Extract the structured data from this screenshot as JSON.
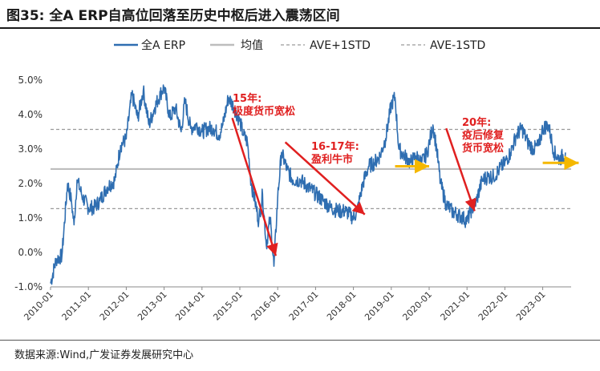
{
  "header": {
    "figure_label": "图35:",
    "title": "全A ERP自高位回落至历史中枢后进入震荡区间"
  },
  "source": "数据来源:Wind,广发证券发展研究中心",
  "colors": {
    "erp": "#2f6eb1",
    "mean": "#bdbdbd",
    "std": "#9a9a9a",
    "annotation": "#e02020",
    "arrow_flat": "#f5b800"
  },
  "chart_data": {
    "type": "line",
    "title": "",
    "xlabel": "",
    "ylabel": "",
    "ylim": [
      -1.0,
      5.0
    ],
    "y_ticks": [
      "5.0%",
      "4.0%",
      "3.0%",
      "2.0%",
      "1.0%",
      "0.0%",
      "-1.0%"
    ],
    "x_ticks": [
      "2010-01",
      "2011-01",
      "2012-01",
      "2013-01",
      "2014-01",
      "2015-01",
      "2016-01",
      "2017-01",
      "2018-01",
      "2019-01",
      "2020-01",
      "2021-01",
      "2022-01",
      "2023-01"
    ],
    "grid": false,
    "legend_position": "top",
    "legend": [
      "全A ERP",
      "均值",
      "AVE+1STD",
      "AVE-1STD"
    ],
    "reference_lines": {
      "mean": 2.42,
      "ave_plus_1std": 3.57,
      "ave_minus_1std": 1.27
    },
    "series": [
      {
        "name": "全A ERP",
        "x": [
          2010.0,
          2010.15,
          2010.3,
          2010.45,
          2010.55,
          2010.62,
          2010.7,
          2010.85,
          2011.0,
          2011.15,
          2011.3,
          2011.5,
          2011.7,
          2011.85,
          2012.0,
          2012.15,
          2012.3,
          2012.45,
          2012.6,
          2012.75,
          2012.9,
          2013.0,
          2013.15,
          2013.3,
          2013.45,
          2013.55,
          2013.7,
          2013.85,
          2014.0,
          2014.15,
          2014.3,
          2014.45,
          2014.55,
          2014.7,
          2014.85,
          2015.0,
          2015.1,
          2015.2,
          2015.3,
          2015.4,
          2015.5,
          2015.6,
          2015.7,
          2015.8,
          2015.9,
          2016.0,
          2016.1,
          2016.25,
          2016.4,
          2016.6,
          2016.8,
          2017.0,
          2017.2,
          2017.4,
          2017.6,
          2017.8,
          2018.0,
          2018.1,
          2018.25,
          2018.4,
          2018.55,
          2018.7,
          2018.85,
          2019.0,
          2019.1,
          2019.2,
          2019.35,
          2019.5,
          2019.65,
          2019.8,
          2019.95,
          2020.1,
          2020.2,
          2020.3,
          2020.45,
          2020.6,
          2020.75,
          2020.9,
          2021.0,
          2021.1,
          2021.25,
          2021.4,
          2021.55,
          2021.7,
          2021.85,
          2022.0,
          2022.15,
          2022.3,
          2022.45,
          2022.6,
          2022.75,
          2022.9,
          2023.0,
          2023.15,
          2023.3,
          2023.45,
          2023.6
        ],
        "values": [
          -0.9,
          -0.2,
          -0.1,
          2.0,
          1.5,
          0.8,
          2.1,
          1.6,
          1.3,
          1.3,
          1.5,
          1.9,
          2.1,
          3.1,
          3.3,
          4.6,
          3.9,
          4.7,
          3.7,
          4.2,
          4.6,
          4.8,
          3.9,
          4.2,
          3.5,
          4.4,
          3.6,
          3.7,
          3.5,
          3.6,
          3.6,
          3.4,
          3.7,
          4.5,
          4.2,
          3.8,
          3.4,
          3.2,
          2.0,
          1.5,
          0.9,
          1.7,
          0.2,
          1.0,
          -0.4,
          1.6,
          2.9,
          2.4,
          2.1,
          2.1,
          1.9,
          1.7,
          1.5,
          1.3,
          1.2,
          1.2,
          1.0,
          1.2,
          2.0,
          2.5,
          2.6,
          2.8,
          3.3,
          4.3,
          4.5,
          3.0,
          2.8,
          2.6,
          2.8,
          2.6,
          2.9,
          3.7,
          3.0,
          2.0,
          1.4,
          1.2,
          1.1,
          1.0,
          0.9,
          1.2,
          1.5,
          2.1,
          2.2,
          2.2,
          2.4,
          2.6,
          2.9,
          3.4,
          3.6,
          3.2,
          3.0,
          3.1,
          3.6,
          3.7,
          2.9,
          2.7,
          2.9
        ]
      }
    ],
    "annotations": [
      {
        "lines": [
          "15年:",
          "极度货币宽松"
        ]
      },
      {
        "lines": [
          "16-17年:",
          "盈利牛市"
        ]
      },
      {
        "lines": [
          "20年:",
          "疫后修复",
          "货币宽松"
        ]
      }
    ],
    "arrows": [
      {
        "color": "red",
        "from": [
          2014.8,
          3.9
        ],
        "to": [
          2015.95,
          -0.1
        ]
      },
      {
        "color": "red",
        "from": [
          2016.2,
          3.2
        ],
        "to": [
          2018.3,
          1.1
        ]
      },
      {
        "color": "red",
        "from": [
          2020.45,
          3.6
        ],
        "to": [
          2021.2,
          1.2
        ]
      },
      {
        "color": "yellow",
        "from": [
          2019.1,
          2.5
        ],
        "to": [
          2020.0,
          2.5
        ]
      },
      {
        "color": "yellow",
        "from": [
          2023.0,
          2.6
        ],
        "to": [
          2023.95,
          2.6
        ]
      }
    ]
  }
}
